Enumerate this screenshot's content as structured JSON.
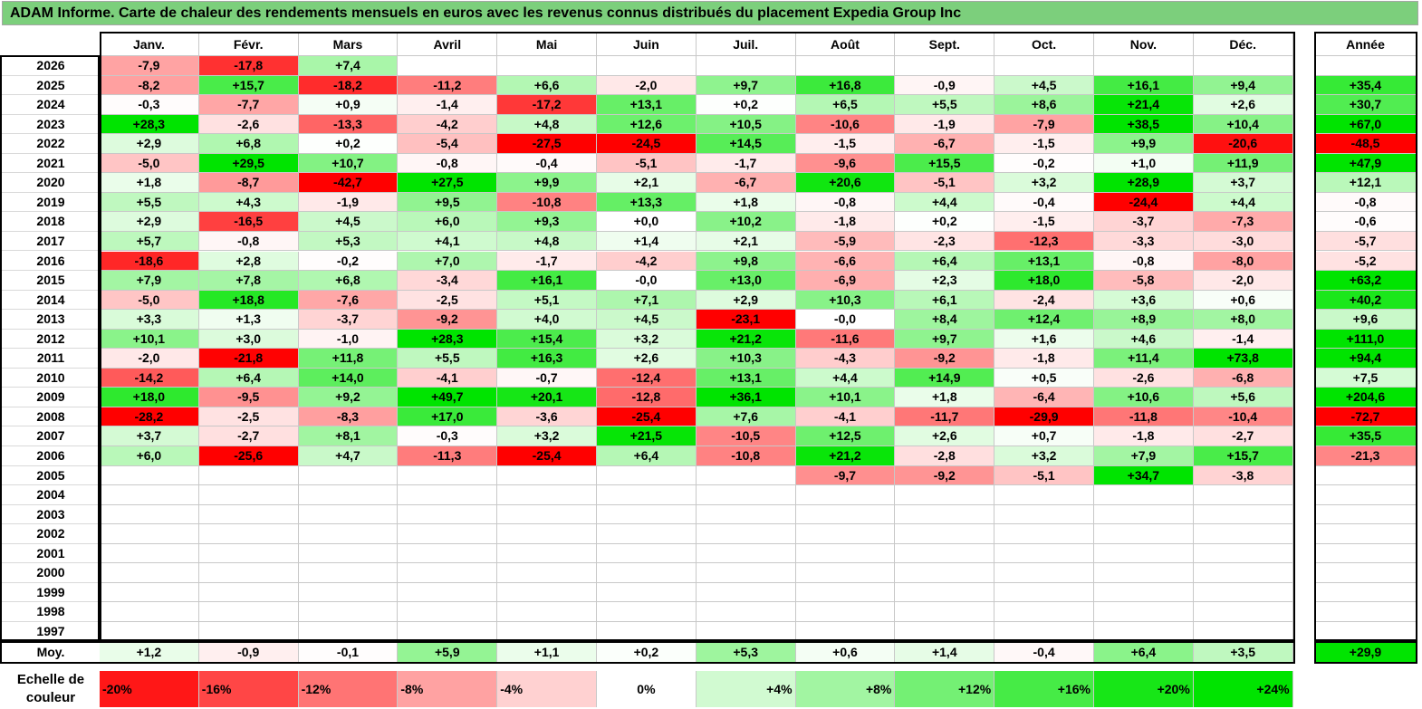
{
  "title": "ADAM Informe. Carte de chaleur des rendements mensuels en euros avec les revenus connus distribués du placement Expedia Group Inc",
  "chart_data": {
    "type": "heatmap",
    "title": "ADAM Informe. Carte de chaleur des rendements mensuels en euros avec les revenus connus distribués du placement Expedia Group Inc",
    "months": [
      "Janv.",
      "Févr.",
      "Mars",
      "Avril",
      "Mai",
      "Juin",
      "Juil.",
      "Août",
      "Sept.",
      "Oct.",
      "Nov.",
      "Déc."
    ],
    "year_header": "Année",
    "avg_label": "Moy.",
    "rows": [
      {
        "year": "2026",
        "values": [
          -7.9,
          -17.8,
          7.4,
          null,
          null,
          null,
          null,
          null,
          null,
          null,
          null,
          null
        ],
        "annual": null
      },
      {
        "year": "2025",
        "values": [
          -8.2,
          15.7,
          -18.2,
          -11.2,
          6.6,
          -2.0,
          9.7,
          16.8,
          -0.9,
          4.5,
          16.1,
          9.4
        ],
        "annual": 35.4
      },
      {
        "year": "2024",
        "values": [
          -0.3,
          -7.7,
          0.9,
          -1.4,
          -17.2,
          13.1,
          0.2,
          6.5,
          5.5,
          8.6,
          21.4,
          2.6
        ],
        "annual": 30.7
      },
      {
        "year": "2023",
        "values": [
          28.3,
          -2.6,
          -13.3,
          -4.2,
          4.8,
          12.6,
          10.5,
          -10.6,
          -1.9,
          -7.9,
          38.5,
          10.4
        ],
        "annual": 67.0
      },
      {
        "year": "2022",
        "values": [
          2.9,
          6.8,
          0.2,
          -5.4,
          -27.5,
          -24.5,
          14.5,
          -1.5,
          -6.7,
          -1.5,
          9.9,
          -20.6
        ],
        "annual": -48.5
      },
      {
        "year": "2021",
        "values": [
          -5.0,
          29.5,
          10.7,
          -0.8,
          -0.4,
          -5.1,
          -1.7,
          -9.6,
          15.5,
          -0.2,
          1.0,
          11.9
        ],
        "annual": 47.9
      },
      {
        "year": "2020",
        "values": [
          1.8,
          -8.7,
          -42.7,
          27.5,
          9.9,
          2.1,
          -6.7,
          20.6,
          -5.1,
          3.2,
          28.9,
          3.7
        ],
        "annual": 12.1
      },
      {
        "year": "2019",
        "values": [
          5.5,
          4.3,
          -1.9,
          9.5,
          -10.8,
          13.3,
          1.8,
          -0.8,
          4.4,
          -0.4,
          -24.4,
          4.4
        ],
        "annual": -0.8
      },
      {
        "year": "2018",
        "values": [
          2.9,
          -16.5,
          4.5,
          6.0,
          9.3,
          0.0,
          10.2,
          -1.8,
          0.2,
          -1.5,
          -3.7,
          -7.3
        ],
        "annual": -0.6
      },
      {
        "year": "2017",
        "values": [
          5.7,
          -0.8,
          5.3,
          4.1,
          4.8,
          1.4,
          2.1,
          -5.9,
          -2.3,
          -12.3,
          -3.3,
          -3.0
        ],
        "annual": -5.7
      },
      {
        "year": "2016",
        "values": [
          -18.6,
          2.8,
          -0.2,
          7.0,
          -1.7,
          -4.2,
          9.8,
          -6.6,
          6.4,
          13.1,
          -0.8,
          -8.0
        ],
        "annual": -5.2
      },
      {
        "year": "2015",
        "values": [
          7.9,
          7.8,
          6.8,
          -3.4,
          16.1,
          -0.0,
          13.0,
          -6.9,
          2.3,
          18.0,
          -5.8,
          -2.0
        ],
        "annual": 63.2
      },
      {
        "year": "2014",
        "values": [
          -5.0,
          18.8,
          -7.6,
          -2.5,
          5.1,
          7.1,
          2.9,
          10.3,
          6.1,
          -2.4,
          3.6,
          0.6
        ],
        "annual": 40.2
      },
      {
        "year": "2013",
        "values": [
          3.3,
          1.3,
          -3.7,
          -9.2,
          4.0,
          4.5,
          -23.1,
          -0.0,
          8.4,
          12.4,
          8.9,
          8.0
        ],
        "annual": 9.6
      },
      {
        "year": "2012",
        "values": [
          10.1,
          3.0,
          -1.0,
          28.3,
          15.4,
          3.2,
          21.2,
          -11.6,
          9.7,
          1.6,
          4.6,
          -1.4
        ],
        "annual": 111.0
      },
      {
        "year": "2011",
        "values": [
          -2.0,
          -21.8,
          11.8,
          5.5,
          16.3,
          2.6,
          10.3,
          -4.3,
          -9.2,
          -1.8,
          11.4,
          73.8
        ],
        "annual": 94.4
      },
      {
        "year": "2010",
        "values": [
          -14.2,
          6.4,
          14.0,
          -4.1,
          -0.7,
          -12.4,
          13.1,
          4.4,
          14.9,
          0.5,
          -2.6,
          -6.8
        ],
        "annual": 7.5
      },
      {
        "year": "2009",
        "values": [
          18.0,
          -9.5,
          9.2,
          49.7,
          20.1,
          -12.8,
          36.1,
          10.1,
          1.8,
          -6.4,
          10.6,
          5.6
        ],
        "annual": 204.6
      },
      {
        "year": "2008",
        "values": [
          -28.2,
          -2.5,
          -8.3,
          17.0,
          -3.6,
          -25.4,
          7.6,
          -4.1,
          -11.7,
          -29.9,
          -11.8,
          -10.4
        ],
        "annual": -72.7
      },
      {
        "year": "2007",
        "values": [
          3.7,
          -2.7,
          8.1,
          -0.3,
          3.2,
          21.5,
          -10.5,
          12.5,
          2.6,
          0.7,
          -1.8,
          -2.7
        ],
        "annual": 35.5
      },
      {
        "year": "2006",
        "values": [
          6.0,
          -25.6,
          4.7,
          -11.3,
          -25.4,
          6.4,
          -10.8,
          21.2,
          -2.8,
          3.2,
          7.9,
          15.7
        ],
        "annual": -21.3
      },
      {
        "year": "2005",
        "values": [
          null,
          null,
          null,
          null,
          null,
          null,
          null,
          -9.7,
          -9.2,
          -5.1,
          34.7,
          -3.8
        ],
        "annual": null
      },
      {
        "year": "2004",
        "values": [
          null,
          null,
          null,
          null,
          null,
          null,
          null,
          null,
          null,
          null,
          null,
          null
        ],
        "annual": null
      },
      {
        "year": "2003",
        "values": [
          null,
          null,
          null,
          null,
          null,
          null,
          null,
          null,
          null,
          null,
          null,
          null
        ],
        "annual": null
      },
      {
        "year": "2002",
        "values": [
          null,
          null,
          null,
          null,
          null,
          null,
          null,
          null,
          null,
          null,
          null,
          null
        ],
        "annual": null
      },
      {
        "year": "2001",
        "values": [
          null,
          null,
          null,
          null,
          null,
          null,
          null,
          null,
          null,
          null,
          null,
          null
        ],
        "annual": null
      },
      {
        "year": "2000",
        "values": [
          null,
          null,
          null,
          null,
          null,
          null,
          null,
          null,
          null,
          null,
          null,
          null
        ],
        "annual": null
      },
      {
        "year": "1999",
        "values": [
          null,
          null,
          null,
          null,
          null,
          null,
          null,
          null,
          null,
          null,
          null,
          null
        ],
        "annual": null
      },
      {
        "year": "1998",
        "values": [
          null,
          null,
          null,
          null,
          null,
          null,
          null,
          null,
          null,
          null,
          null,
          null
        ],
        "annual": null
      },
      {
        "year": "1997",
        "values": [
          null,
          null,
          null,
          null,
          null,
          null,
          null,
          null,
          null,
          null,
          null,
          null
        ],
        "annual": null
      }
    ],
    "averages": [
      1.2,
      -0.9,
      -0.1,
      5.9,
      1.1,
      0.2,
      5.3,
      0.6,
      1.4,
      -0.4,
      6.4,
      3.5
    ],
    "average_annual": 29.9,
    "scale_label": "Echelle de couleur",
    "scale_steps": [
      {
        "label": "-20%",
        "value": -20
      },
      {
        "label": "-16%",
        "value": -16
      },
      {
        "label": "-12%",
        "value": -12
      },
      {
        "label": "-8%",
        "value": -8
      },
      {
        "label": "-4%",
        "value": -4
      },
      {
        "label": "0%",
        "value": 0
      },
      {
        "label": "+4%",
        "value": 4
      },
      {
        "label": "+8%",
        "value": 8
      },
      {
        "label": "+12%",
        "value": 12
      },
      {
        "label": "+16%",
        "value": 16
      },
      {
        "label": "+20%",
        "value": 20
      },
      {
        "label": "+24%",
        "value": 24
      }
    ],
    "colors": {
      "negative": "#ff0000",
      "neutral": "#ffffff",
      "positive": "#00e400",
      "title_bg": "#7ccf7c"
    }
  }
}
